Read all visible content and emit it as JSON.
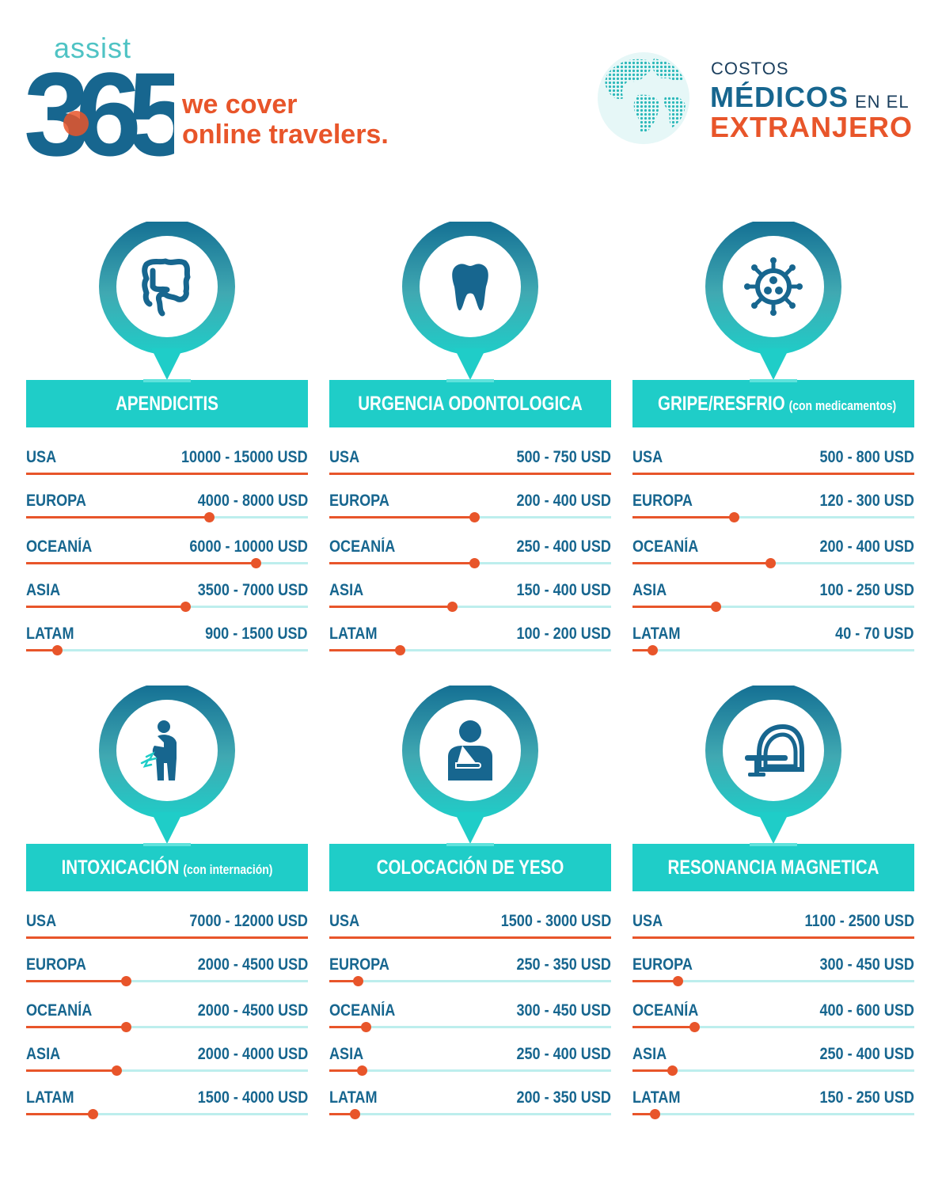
{
  "brand": {
    "assist": "assist",
    "number": "365",
    "tagline_line1": "we cover",
    "tagline_line2": "online travelers.",
    "color_teal": "#17668f",
    "color_orange": "#e8552a",
    "color_light": "#1fcdc8"
  },
  "title": {
    "line1": "COSTOS",
    "line2": "MÉDICOS",
    "line2_suffix": "EN EL",
    "line3": "EXTRANJERO"
  },
  "cards": [
    {
      "title": "APENDICITIS",
      "note": "",
      "icon": "intestine-icon",
      "rows": [
        {
          "region": "USA",
          "price": "10000 - 15000 USD",
          "level": 1.0
        },
        {
          "region": "EUROPA",
          "price": "4000 - 8000 USD",
          "level": 0.65
        },
        {
          "region": "OCEANÍA",
          "price": "6000 - 10000 USD",
          "level": 0.815
        },
        {
          "region": "ASIA",
          "price": "3500 - 7000 USD",
          "level": 0.565
        },
        {
          "region": "LATAM",
          "price": "900 - 1500 USD",
          "level": 0.11
        }
      ]
    },
    {
      "title": "URGENCIA ODONTOLOGICA",
      "note": "",
      "icon": "tooth-icon",
      "rows": [
        {
          "region": "USA",
          "price": "500 - 750 USD",
          "level": 1.0
        },
        {
          "region": "EUROPA",
          "price": "200 - 400 USD",
          "level": 0.515
        },
        {
          "region": "OCEANÍA",
          "price": "250 - 400 USD",
          "level": 0.515
        },
        {
          "region": "ASIA",
          "price": "150 - 400 USD",
          "level": 0.435
        },
        {
          "region": "LATAM",
          "price": "100 - 200 USD",
          "level": 0.25
        }
      ]
    },
    {
      "title": "GRIPE/RESFRIO",
      "note": "(con medicamentos)",
      "icon": "virus-icon",
      "rows": [
        {
          "region": "USA",
          "price": "500 - 800 USD",
          "level": 1.0
        },
        {
          "region": "EUROPA",
          "price": "120 - 300 USD",
          "level": 0.36
        },
        {
          "region": "OCEANÍA",
          "price": "200 - 400 USD",
          "level": 0.49
        },
        {
          "region": "ASIA",
          "price": "100 - 250 USD",
          "level": 0.295
        },
        {
          "region": "LATAM",
          "price": "40 - 70 USD",
          "level": 0.07
        }
      ]
    },
    {
      "title": "INTOXICACIÓN",
      "note": "(con internación)",
      "icon": "sick-person-icon",
      "rows": [
        {
          "region": "USA",
          "price": "7000 - 12000 USD",
          "level": 1.0
        },
        {
          "region": "EUROPA",
          "price": "2000 - 4500 USD",
          "level": 0.355
        },
        {
          "region": "OCEANÍA",
          "price": "2000 - 4500 USD",
          "level": 0.355
        },
        {
          "region": "ASIA",
          "price": "2000 - 4000 USD",
          "level": 0.32
        },
        {
          "region": "LATAM",
          "price": "1500 - 4000 USD",
          "level": 0.235
        }
      ]
    },
    {
      "title": "COLOCACIÓN DE YESO",
      "note": "",
      "icon": "arm-sling-icon",
      "rows": [
        {
          "region": "USA",
          "price": "1500 - 3000 USD",
          "level": 1.0
        },
        {
          "region": "EUROPA",
          "price": "250 - 350 USD",
          "level": 0.1
        },
        {
          "region": "OCEANÍA",
          "price": "300 - 450 USD",
          "level": 0.13
        },
        {
          "region": "ASIA",
          "price": "250 - 400 USD",
          "level": 0.115
        },
        {
          "region": "LATAM",
          "price": "200 - 350 USD",
          "level": 0.09
        }
      ]
    },
    {
      "title": "RESONANCIA MAGNETICA",
      "note": "",
      "icon": "mri-scanner-icon",
      "rows": [
        {
          "region": "USA",
          "price": "1100 - 2500 USD",
          "level": 1.0
        },
        {
          "region": "EUROPA",
          "price": "300 - 450 USD",
          "level": 0.16
        },
        {
          "region": "OCEANÍA",
          "price": "400 - 600 USD",
          "level": 0.22
        },
        {
          "region": "ASIA",
          "price": "250 - 400 USD",
          "level": 0.14
        },
        {
          "region": "LATAM",
          "price": "150 - 250 USD",
          "level": 0.08
        }
      ]
    }
  ]
}
